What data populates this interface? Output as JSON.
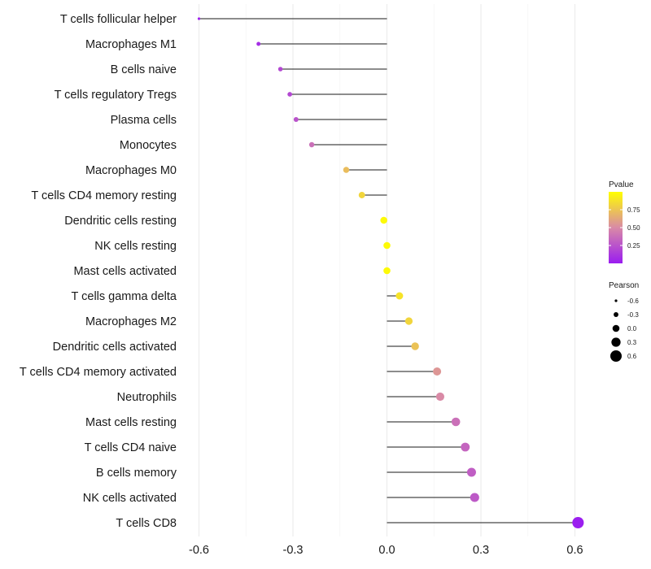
{
  "chart_data": {
    "type": "lollipop",
    "categories": [
      "T cells follicular helper",
      "Macrophages M1",
      "B cells naive",
      "T cells regulatory  Tregs",
      "Plasma cells",
      "Monocytes",
      "Macrophages M0",
      "T cells CD4 memory resting",
      "Dendritic cells resting",
      "NK cells resting",
      "Mast cells activated",
      "T cells gamma delta",
      "Macrophages M2",
      "Dendritic cells activated",
      "T cells CD4 memory activated",
      "Neutrophils",
      "Mast cells resting",
      "T cells CD4 naive",
      "B cells memory",
      "NK cells activated",
      "T cells CD8"
    ],
    "pearson": [
      -0.6,
      -0.41,
      -0.34,
      -0.31,
      -0.29,
      -0.24,
      -0.13,
      -0.08,
      -0.01,
      0.0,
      0.0,
      0.04,
      0.07,
      0.09,
      0.16,
      0.17,
      0.22,
      0.25,
      0.27,
      0.28,
      0.61
    ],
    "pvalue": [
      0.03,
      0.08,
      0.2,
      0.2,
      0.25,
      0.38,
      0.72,
      0.82,
      0.98,
      0.98,
      0.98,
      0.88,
      0.82,
      0.74,
      0.55,
      0.5,
      0.38,
      0.33,
      0.3,
      0.28,
      0.01
    ],
    "xticks": [
      "-0.6",
      "-0.3",
      "0.0",
      "0.3",
      "0.6"
    ],
    "xtick_values": [
      -0.6,
      -0.3,
      0.0,
      0.3,
      0.6
    ],
    "xlim": [
      -0.66,
      0.66
    ],
    "colorbar": {
      "title": "Pvalue",
      "ticks": [
        "0.25",
        "0.50",
        "0.75"
      ],
      "tick_values": [
        0.25,
        0.5,
        0.75
      ],
      "range": [
        0.0,
        1.0
      ],
      "low_color": "#9A1CF0",
      "mid_color": "#D98AA6",
      "high_color": "#FFFF00"
    },
    "size_legend": {
      "title": "Pearson",
      "labels": [
        "-0.6",
        "-0.3",
        "0.0",
        "0.3",
        "0.6"
      ],
      "values": [
        -0.6,
        -0.3,
        0.0,
        0.3,
        0.6
      ]
    },
    "grid": true
  }
}
